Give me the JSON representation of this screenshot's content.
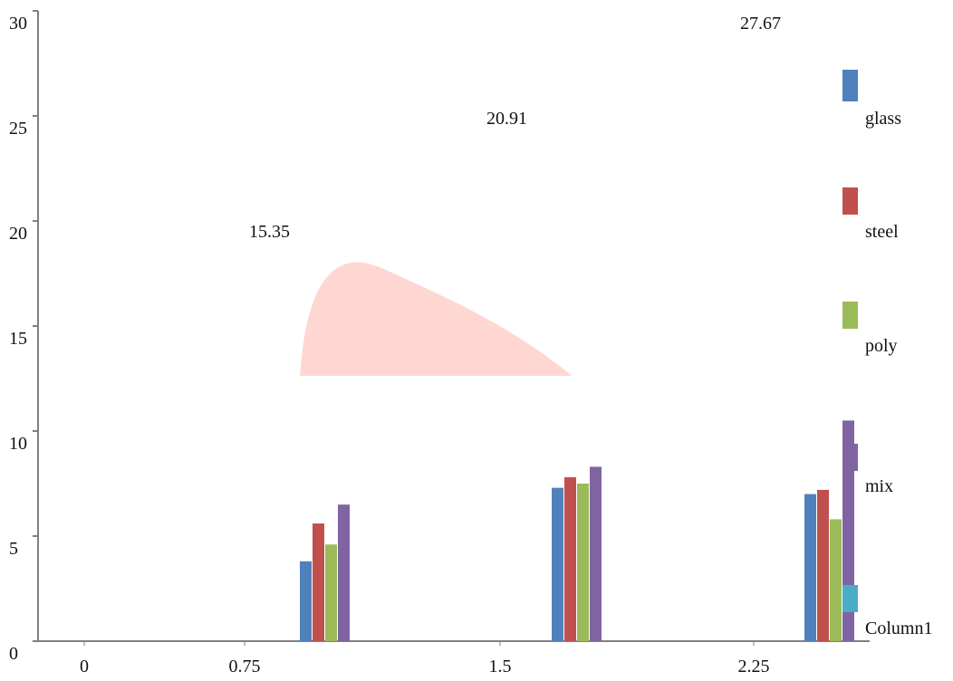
{
  "chart_data": {
    "type": "bar",
    "title": "",
    "xlabel": "",
    "ylabel": "",
    "x_ticks": [
      "0",
      "0.75",
      "1.5",
      "2.25"
    ],
    "y_ticks": [
      "0",
      "5",
      "10",
      "15",
      "20",
      "25",
      "30"
    ],
    "ylim": [
      0,
      30
    ],
    "groups": [
      {
        "label": "15.35",
        "values": [
          3.8,
          5.6,
          4.6,
          6.5
        ]
      },
      {
        "label": "20.91",
        "values": [
          7.3,
          7.8,
          7.5,
          8.3
        ]
      },
      {
        "label": "27.67",
        "values": [
          7.0,
          7.2,
          5.8,
          10.5
        ]
      }
    ],
    "series": [
      {
        "name": "glass",
        "color": "#4f81bd"
      },
      {
        "name": "steel",
        "color": "#c0504d"
      },
      {
        "name": "poly",
        "color": "#9bbb59"
      },
      {
        "name": "mix",
        "color": "#8064a2"
      },
      {
        "name": "Column1",
        "color": "#4bacc6"
      }
    ],
    "legend_position": "right",
    "grid": false
  }
}
